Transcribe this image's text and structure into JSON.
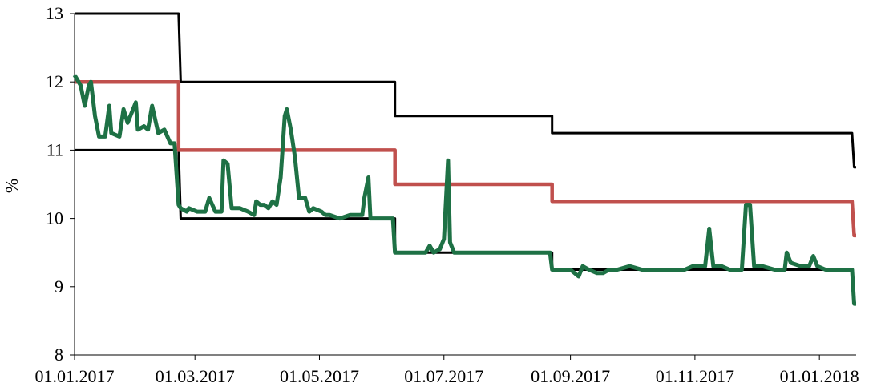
{
  "chart_data": {
    "type": "line",
    "ylabel": "%",
    "xlim": [
      "01.01.2017",
      "19.01.2018"
    ],
    "xticks": [
      "01.01.2017",
      "01.03.2017",
      "01.05.2017",
      "01.07.2017",
      "01.09.2017",
      "01.11.2017",
      "01.01.2018"
    ],
    "ylim": [
      8,
      13
    ],
    "yticks": [
      8,
      9,
      10,
      11,
      12,
      13
    ],
    "series": [
      {
        "color": "#000000",
        "width": 3,
        "x": [
          "01.01.2017",
          "21.02.2017",
          "22.02.2017",
          "07.06.2017",
          "07.06.2017",
          "23.08.2017",
          "23.08.2017",
          "17.01.2018",
          "18.01.2018",
          "19.01.2018"
        ],
        "values": [
          13,
          13,
          12,
          12,
          11.5,
          11.5,
          11.25,
          11.25,
          10.75,
          10.75
        ]
      },
      {
        "color": "#000000",
        "width": 3,
        "x": [
          "01.01.2017",
          "21.02.2017",
          "22.02.2017",
          "07.06.2017",
          "07.06.2017",
          "23.08.2017",
          "23.08.2017",
          "17.01.2018",
          "18.01.2018",
          "19.01.2018"
        ],
        "values": [
          11,
          11,
          10,
          10,
          9.5,
          9.5,
          9.25,
          9.25,
          8.75,
          8.75
        ]
      },
      {
        "color": "#c0504d",
        "width": 4.5,
        "x": [
          "01.01.2017",
          "21.02.2017",
          "21.02.2017",
          "07.06.2017",
          "07.06.2017",
          "23.08.2017",
          "23.08.2017",
          "17.01.2018",
          "18.01.2018",
          "19.01.2018"
        ],
        "values": [
          12,
          12,
          11,
          11,
          10.5,
          10.5,
          10.25,
          10.25,
          9.75,
          9.75
        ]
      },
      {
        "color": "#1e7145",
        "width": 5,
        "x": [
          "01.01.2017",
          "04.01.2017",
          "06.01.2017",
          "08.01.2017",
          "09.01.2017",
          "11.01.2017",
          "13.01.2017",
          "16.01.2017",
          "18.01.2017",
          "19.01.2017",
          "23.01.2017",
          "25.01.2017",
          "27.01.2017",
          "31.01.2017",
          "01.02.2017",
          "04.02.2017",
          "06.02.2017",
          "08.02.2017",
          "11.02.2017",
          "14.02.2017",
          "17.02.2017",
          "19.02.2017",
          "21.02.2017",
          "22.02.2017",
          "25.02.2017",
          "26.02.2017",
          "02.03.2017",
          "06.03.2017",
          "08.03.2017",
          "11.03.2017",
          "14.03.2017",
          "15.03.2017",
          "17.03.2017",
          "19.03.2017",
          "23.03.2017",
          "27.03.2017",
          "30.03.2017",
          "31.03.2017",
          "02.04.2017",
          "04.04.2017",
          "06.04.2017",
          "08.04.2017",
          "10.04.2017",
          "12.04.2017",
          "14.04.2017",
          "15.04.2017",
          "17.04.2017",
          "19.04.2017",
          "21.04.2017",
          "24.04.2017",
          "26.04.2017",
          "28.04.2017",
          "02.05.2017",
          "04.05.2017",
          "06.05.2017",
          "11.05.2017",
          "16.05.2017",
          "19.05.2017",
          "22.05.2017",
          "23.05.2017",
          "25.05.2017",
          "26.05.2017",
          "29.05.2017",
          "02.06.2017",
          "06.06.2017",
          "07.06.2017",
          "14.06.2017",
          "22.06.2017",
          "24.06.2017",
          "26.06.2017",
          "29.06.2017",
          "01.07.2017",
          "03.07.2017",
          "04.07.2017",
          "06.07.2017",
          "09.07.2017",
          "15.07.2017",
          "23.07.2017",
          "31.07.2017",
          "11.08.2017",
          "22.08.2017",
          "23.08.2017",
          "27.08.2017",
          "01.09.2017",
          "05.09.2017",
          "07.09.2017",
          "10.09.2017",
          "14.09.2017",
          "17.09.2017",
          "20.09.2017",
          "24.09.2017",
          "30.09.2017",
          "06.10.2017",
          "18.10.2017",
          "27.10.2017",
          "31.10.2017",
          "04.11.2017",
          "06.11.2017",
          "08.11.2017",
          "10.11.2017",
          "14.11.2017",
          "18.11.2017",
          "24.11.2017",
          "26.11.2017",
          "28.11.2017",
          "30.11.2017",
          "04.12.2017",
          "10.12.2017",
          "15.12.2017",
          "16.12.2017",
          "18.12.2017",
          "23.12.2017",
          "27.12.2017",
          "29.12.2017",
          "31.12.2017",
          "04.01.2018",
          "08.01.2018",
          "12.01.2018",
          "17.01.2018",
          "18.01.2018",
          "19.01.2018"
        ],
        "values": [
          12.1,
          11.95,
          11.65,
          11.95,
          12.0,
          11.5,
          11.2,
          11.2,
          11.65,
          11.25,
          11.2,
          11.6,
          11.4,
          11.7,
          11.3,
          11.35,
          11.3,
          11.65,
          11.25,
          11.3,
          11.1,
          11.1,
          10.2,
          10.15,
          10.1,
          10.15,
          10.1,
          10.1,
          10.3,
          10.1,
          10.1,
          10.85,
          10.8,
          10.15,
          10.15,
          10.1,
          10.05,
          10.25,
          10.2,
          10.2,
          10.15,
          10.25,
          10.2,
          10.6,
          11.5,
          11.6,
          11.3,
          10.9,
          10.3,
          10.3,
          10.1,
          10.15,
          10.1,
          10.05,
          10.05,
          10.0,
          10.05,
          10.05,
          10.05,
          10.3,
          10.6,
          10.0,
          10.0,
          10.0,
          10.0,
          9.5,
          9.5,
          9.5,
          9.6,
          9.5,
          9.55,
          9.7,
          10.85,
          9.65,
          9.5,
          9.5,
          9.5,
          9.5,
          9.5,
          9.5,
          9.5,
          9.25,
          9.25,
          9.25,
          9.15,
          9.3,
          9.25,
          9.2,
          9.2,
          9.25,
          9.25,
          9.3,
          9.25,
          9.25,
          9.25,
          9.3,
          9.3,
          9.3,
          9.85,
          9.3,
          9.3,
          9.25,
          9.25,
          10.2,
          10.2,
          9.3,
          9.3,
          9.25,
          9.25,
          9.5,
          9.35,
          9.3,
          9.3,
          9.45,
          9.3,
          9.25,
          9.25,
          9.25,
          9.25,
          8.75,
          8.75
        ]
      }
    ]
  }
}
